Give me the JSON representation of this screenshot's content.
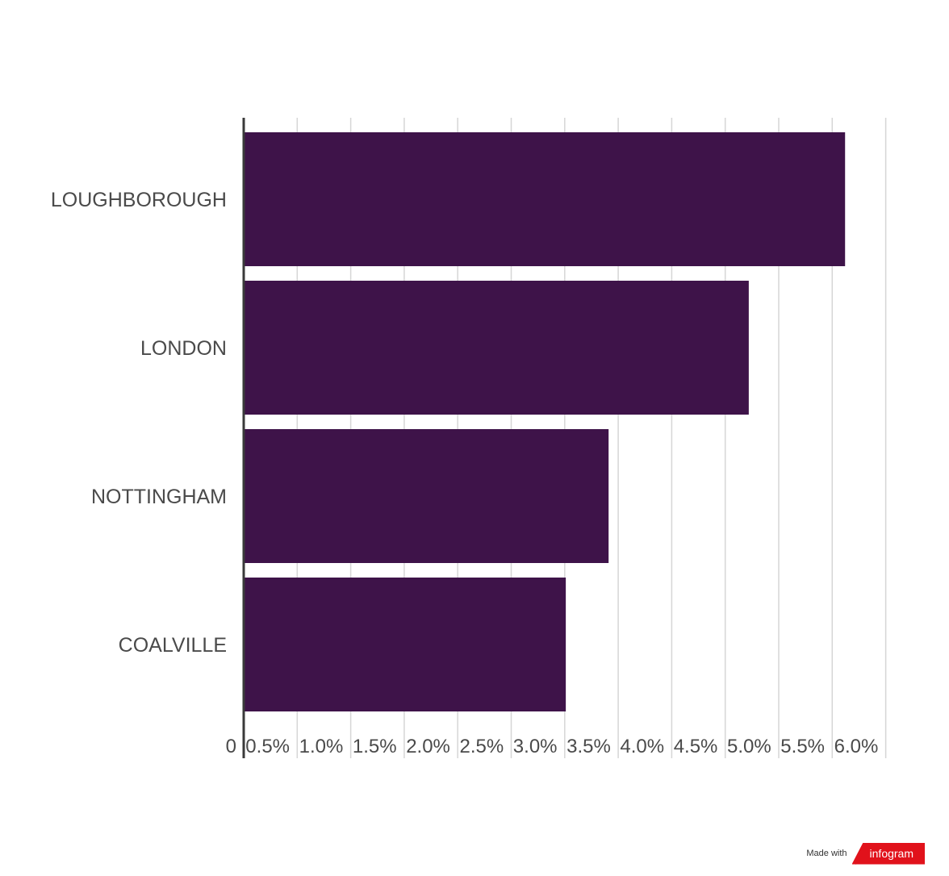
{
  "chart_data": {
    "type": "bar",
    "orientation": "horizontal",
    "categories": [
      "LOUGHBOROUGH",
      "LONDON",
      "NOTTINGHAM",
      "COALVILLE"
    ],
    "values": [
      5.62,
      4.72,
      3.41,
      3.01
    ],
    "x_ticks": [
      "0",
      "0.5%",
      "1.0%",
      "1.5%",
      "2.0%",
      "2.5%",
      "3.0%",
      "3.5%",
      "4.0%",
      "4.5%",
      "5.0%",
      "5.5%",
      "6.0%"
    ],
    "xlim": [
      0,
      6.0
    ],
    "grid": true,
    "legend": "none",
    "bar_color": "#3e1349",
    "title": "",
    "xlabel": "",
    "ylabel": ""
  },
  "footer": {
    "made_with": "Made with",
    "brand": "infogram",
    "brand_color": "#e1121b"
  }
}
